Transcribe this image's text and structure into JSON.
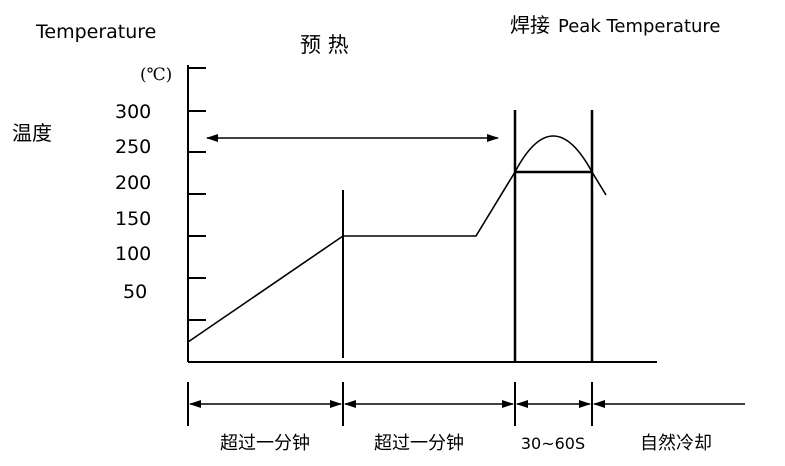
{
  "labels": {
    "temperature_en": "Temperature",
    "temperature_cn": "温度",
    "unit": "(℃)",
    "preheat": "预 热",
    "soldering": "焊接",
    "peak_temperature": "Peak Temperature"
  },
  "y_axis": {
    "ticks": [
      "300",
      "250",
      "200",
      "150",
      "100",
      "50"
    ]
  },
  "time_segments": [
    {
      "label": "超过一分钟"
    },
    {
      "label": "超过一分钟"
    },
    {
      "label": "30~60S"
    },
    {
      "label": "自然冷却"
    }
  ],
  "chart_data": {
    "type": "line",
    "title": "",
    "ylabel": "Temperature",
    "y_ticks": [
      300,
      250,
      200,
      150,
      100,
      50
    ],
    "segments": [
      "超过一分钟",
      "超过一分钟",
      "30~60S",
      "自然冷却"
    ]
  }
}
